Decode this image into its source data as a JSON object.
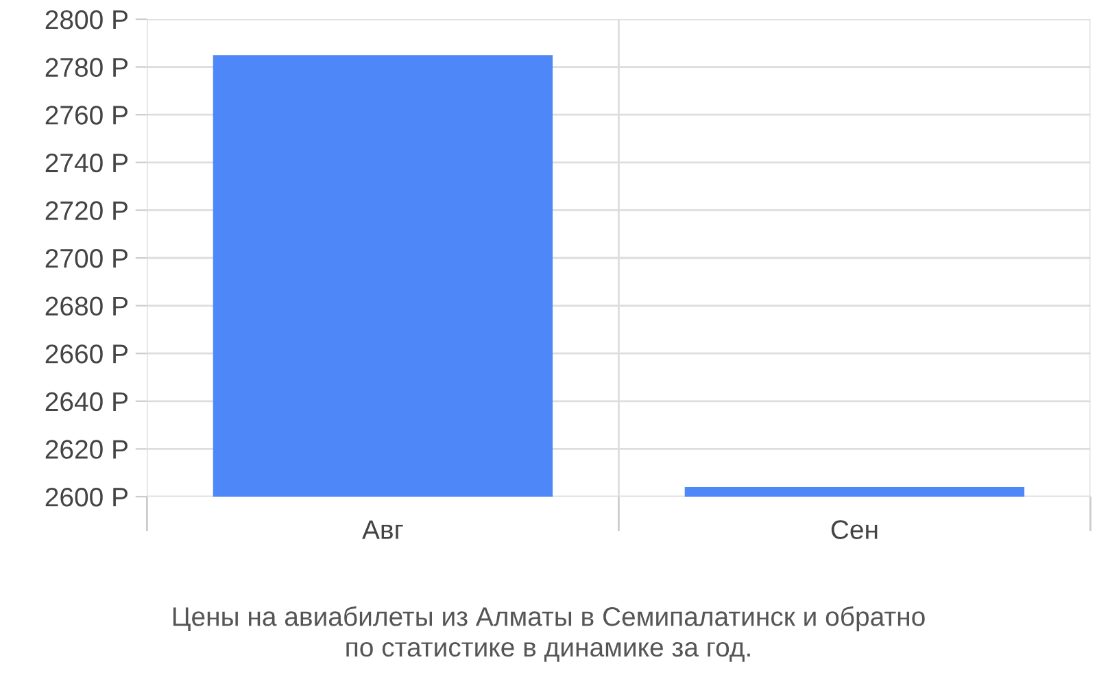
{
  "chart_data": {
    "type": "bar",
    "title": "Цены на авиабилеты из Алматы в Семипалатинск и обратно\nпо статистике в динамике за год.",
    "categories": [
      "Авг",
      "Сен"
    ],
    "values": [
      2785,
      2604
    ],
    "color": "#4e88f8",
    "ylim": [
      2600,
      2800
    ],
    "yticks": [
      {
        "value": 2600,
        "label": "2600 Р"
      },
      {
        "value": 2620,
        "label": "2620 Р"
      },
      {
        "value": 2640,
        "label": "2640 Р"
      },
      {
        "value": 2660,
        "label": "2660 Р"
      },
      {
        "value": 2680,
        "label": "2680 Р"
      },
      {
        "value": 2700,
        "label": "2700 Р"
      },
      {
        "value": 2720,
        "label": "2720 Р"
      },
      {
        "value": 2740,
        "label": "2740 Р"
      },
      {
        "value": 2760,
        "label": "2760 Р"
      },
      {
        "value": 2780,
        "label": "2780 Р"
      },
      {
        "value": 2800,
        "label": "2800 Р"
      }
    ],
    "grid": true
  }
}
